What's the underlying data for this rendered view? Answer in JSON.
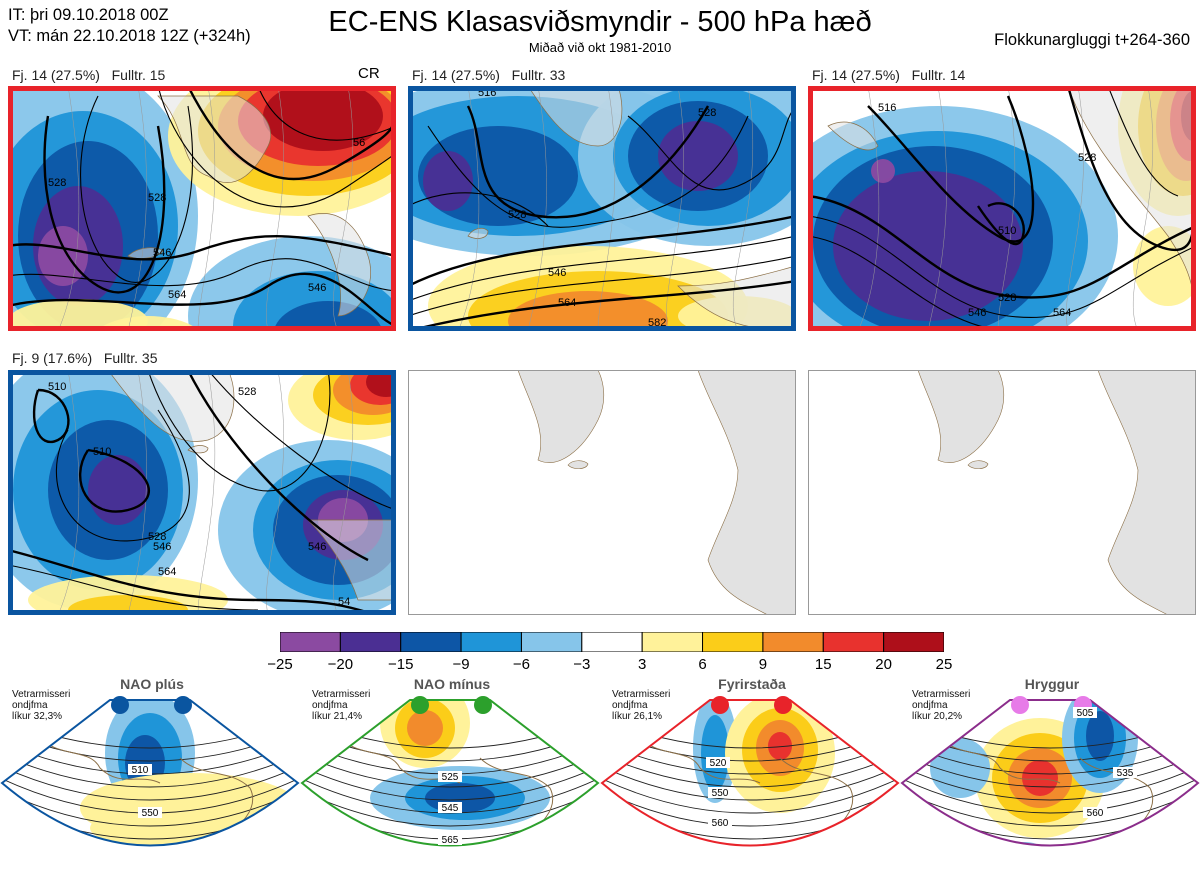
{
  "header": {
    "it": "IT: þri 09.10.2018 00Z",
    "vt": "VT: mán 22.10.2018 12Z  (+324h)",
    "title": "EC-ENS Klasasviðsmyndir - 500 hPa hæð",
    "subtitle": "Miðað við okt 1981-2010",
    "window": "Flokkunargluggi t+264-360"
  },
  "colors": {
    "red_frame": "#e8232a",
    "blue_frame": "#0a55a0",
    "green_frame": "#2ca02c",
    "purple_frame": "#8b2d8b",
    "land": "#e2e2e2",
    "coast": "#8b6f47"
  },
  "chart_data": [
    {
      "type": "heatmap",
      "name": "colorbar",
      "bounds": [
        -25,
        -20,
        -15,
        -9,
        -6,
        -3,
        3,
        6,
        9,
        15,
        20,
        25
      ],
      "tick_labels": [
        "−25",
        "−20",
        "−15",
        "−9",
        "−6",
        "−3",
        "3",
        "6",
        "9",
        "15",
        "20",
        "25"
      ],
      "colors": [
        "#8b4aa1",
        "#4b2f93",
        "#0d56a6",
        "#1f95d8",
        "#86c5ea",
        "#ffffff",
        "#fff29a",
        "#fbcd19",
        "#f28b2c",
        "#e8322e",
        "#ae0f1a"
      ]
    },
    {
      "type": "heatmap",
      "clusters": [
        {
          "label": "Fj. 14 (27.5%)",
          "rep": "Fulltr. 15",
          "regime": "red",
          "badge": "CR",
          "contours": [
            "528",
            "546",
            "564",
            "528",
            "546",
            "56"
          ]
        },
        {
          "label": "Fj. 14 (27.5%)",
          "rep": "Fulltr. 33",
          "regime": "blue",
          "badge": "",
          "contours": [
            "516",
            "528",
            "546",
            "564",
            "582",
            "528"
          ]
        },
        {
          "label": "Fj. 14 (27.5%)",
          "rep": "Fulltr. 14",
          "regime": "red",
          "badge": "",
          "contours": [
            "516",
            "510",
            "528",
            "546",
            "564",
            "528"
          ]
        },
        {
          "label": "Fj. 9 (17.6%)",
          "rep": "Fulltr. 35",
          "regime": "blue",
          "badge": "",
          "contours": [
            "510",
            "510",
            "528",
            "546",
            "564",
            "528",
            "546",
            "54"
          ]
        },
        {
          "label": "",
          "rep": "",
          "regime": "empty",
          "badge": "",
          "contours": []
        },
        {
          "label": "",
          "rep": "",
          "regime": "empty",
          "badge": "",
          "contours": []
        }
      ]
    },
    {
      "type": "heatmap",
      "regimes": [
        {
          "name": "NAO plús",
          "info": [
            "Vetrarmisseri",
            "ondjfma",
            "líkur 32,3%"
          ],
          "frame": "blue",
          "dot": "#0a55a0",
          "contours": [
            "510",
            "550"
          ]
        },
        {
          "name": "NAO mínus",
          "info": [
            "Vetrarmisseri",
            "ondjfma",
            "líkur 21,4%"
          ],
          "frame": "green",
          "dot": "#2ca02c",
          "contours": [
            "525",
            "545",
            "565"
          ]
        },
        {
          "name": "Fyrirstaða",
          "info": [
            "Vetrarmisseri",
            "ondjfma",
            "líkur 26,1%"
          ],
          "frame": "red",
          "dot": "#e8232a",
          "contours": [
            "520",
            "550",
            "560"
          ]
        },
        {
          "name": "Hryggur",
          "info": [
            "Vetrarmisseri",
            "ondjfma",
            "líkur 20,2%"
          ],
          "frame": "purple",
          "dot": "#e77be8",
          "contours": [
            "505",
            "535",
            "560"
          ]
        }
      ]
    }
  ]
}
